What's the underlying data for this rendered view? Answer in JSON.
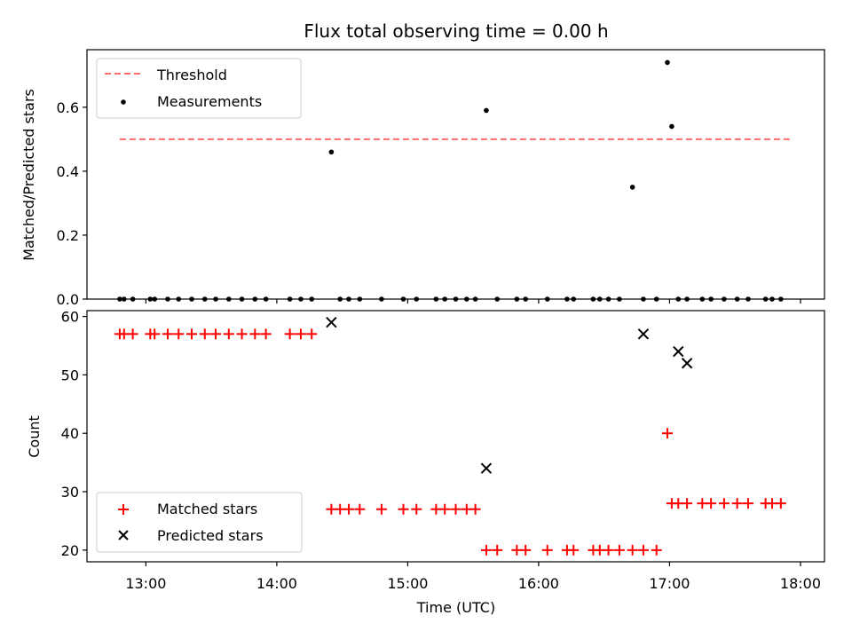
{
  "title": "Flux total observing time = 0.00 h",
  "xlabel": "Time (UTC)",
  "x_ticks": [
    "13:00",
    "14:00",
    "15:00",
    "16:00",
    "17:00",
    "18:00"
  ],
  "colors": {
    "threshold": "#ff6b6b",
    "measurement": "#000000",
    "matched": "#ff0000",
    "predicted": "#000000"
  },
  "chart_data": [
    {
      "type": "scatter",
      "ylabel": "Matched/Predicted stars",
      "xlim": [
        "12:33",
        "18:11"
      ],
      "ylim": [
        0,
        0.78
      ],
      "y_ticks": [
        "0.0",
        "0.2",
        "0.4",
        "0.6"
      ],
      "legend": {
        "placement": "upper-left",
        "entries": [
          "Threshold",
          "Measurements"
        ]
      },
      "threshold": {
        "name": "Threshold",
        "value": 0.5,
        "x_range": [
          "12:48",
          "17:55"
        ]
      },
      "series": [
        {
          "name": "Measurements",
          "x": [
            "12:48",
            "12:50",
            "12:54",
            "13:02",
            "13:04",
            "13:10",
            "13:15",
            "13:21",
            "13:27",
            "13:32",
            "13:38",
            "13:44",
            "13:50",
            "13:55",
            "14:06",
            "14:11",
            "14:16",
            "14:25",
            "14:29",
            "14:33",
            "14:38",
            "14:48",
            "14:58",
            "15:04",
            "15:13",
            "15:17",
            "15:22",
            "15:27",
            "15:31",
            "15:36",
            "15:41",
            "15:50",
            "15:54",
            "16:04",
            "16:13",
            "16:16",
            "16:25",
            "16:28",
            "16:32",
            "16:37",
            "16:43",
            "16:48",
            "16:54",
            "16:59",
            "17:01",
            "17:04",
            "17:08",
            "17:15",
            "17:19",
            "17:25",
            "17:31",
            "17:36",
            "17:44",
            "17:47",
            "17:51"
          ],
          "y": [
            0,
            0,
            0,
            0,
            0,
            0,
            0,
            0,
            0,
            0,
            0,
            0,
            0,
            0,
            0,
            0,
            0,
            0.46,
            0,
            0,
            0,
            0,
            0,
            0,
            0,
            0,
            0,
            0,
            0,
            0.59,
            0,
            0,
            0,
            0,
            0,
            0,
            0,
            0,
            0,
            0,
            0.35,
            0,
            0,
            0.74,
            0.54,
            0,
            0,
            0,
            0,
            0,
            0,
            0,
            0,
            0,
            0
          ]
        }
      ]
    },
    {
      "type": "scatter",
      "ylabel": "Count",
      "xlim": [
        "12:33",
        "18:11"
      ],
      "ylim": [
        18,
        61
      ],
      "y_ticks": [
        "20",
        "30",
        "40",
        "50",
        "60"
      ],
      "legend": {
        "placement": "lower-left",
        "entries": [
          "Matched stars",
          "Predicted stars"
        ]
      },
      "series": [
        {
          "name": "Matched stars",
          "marker": "plus",
          "x": [
            "12:48",
            "12:50",
            "12:54",
            "13:02",
            "13:04",
            "13:10",
            "13:15",
            "13:21",
            "13:27",
            "13:32",
            "13:38",
            "13:44",
            "13:50",
            "13:55",
            "14:06",
            "14:11",
            "14:16",
            "14:25",
            "14:29",
            "14:33",
            "14:38",
            "14:48",
            "14:58",
            "15:04",
            "15:13",
            "15:17",
            "15:22",
            "15:27",
            "15:31",
            "15:36",
            "15:41",
            "15:50",
            "15:54",
            "16:04",
            "16:13",
            "16:16",
            "16:25",
            "16:28",
            "16:32",
            "16:37",
            "16:43",
            "16:48",
            "16:54",
            "16:59",
            "17:01",
            "17:04",
            "17:08",
            "17:15",
            "17:19",
            "17:25",
            "17:31",
            "17:36",
            "17:44",
            "17:47",
            "17:51"
          ],
          "y": [
            57,
            57,
            57,
            57,
            57,
            57,
            57,
            57,
            57,
            57,
            57,
            57,
            57,
            57,
            57,
            57,
            57,
            27,
            27,
            27,
            27,
            27,
            27,
            27,
            27,
            27,
            27,
            27,
            27,
            20,
            20,
            20,
            20,
            20,
            20,
            20,
            20,
            20,
            20,
            20,
            20,
            20,
            20,
            40,
            28,
            28,
            28,
            28,
            28,
            28,
            28,
            28,
            28,
            28,
            28
          ]
        },
        {
          "name": "Predicted stars",
          "marker": "x",
          "x": [
            "14:25",
            "15:36",
            "16:48",
            "17:04",
            "17:08"
          ],
          "y": [
            59,
            34,
            57,
            54,
            52
          ]
        }
      ]
    }
  ]
}
